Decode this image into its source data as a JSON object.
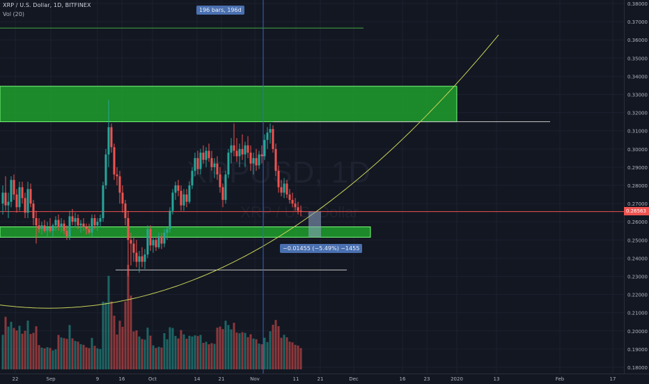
{
  "header": {
    "symbol": "XRP / U.S. Dollar, 1D, BITFINEX",
    "volume_indicator": "Vol (20)"
  },
  "annotations": {
    "bars_range": "196 bars, 196d",
    "measure": "−0.01455 (−5.49%) −1455",
    "watermark_symbol": "XRPUSD, 1D",
    "watermark_name": "XRP / U.S. Dollar"
  },
  "last_price": "0.26563",
  "colors": {
    "background": "#131722",
    "up": "#26a69a",
    "down": "#ef5350",
    "zone": "#1f9e2b",
    "zone_border": "#7cff7c",
    "curve": "#c8d45a",
    "price_line": "#ef5350",
    "badge": "#4a70b0"
  },
  "chart_data": {
    "type": "candlestick",
    "y_ticks": [
      "0.38000",
      "0.37000",
      "0.36000",
      "0.35000",
      "0.34000",
      "0.33000",
      "0.32000",
      "0.31000",
      "0.30000",
      "0.29000",
      "0.28000",
      "0.27000",
      "0.26000",
      "0.25000",
      "0.24000",
      "0.23000",
      "0.22000",
      "0.21000",
      "0.20000",
      "0.19000",
      "0.18000"
    ],
    "x_ticks": [
      {
        "label": "22",
        "x": 22
      },
      {
        "label": "Sep",
        "x": 73
      },
      {
        "label": "9",
        "x": 140
      },
      {
        "label": "16",
        "x": 175
      },
      {
        "label": "Oct",
        "x": 219
      },
      {
        "label": "14",
        "x": 283
      },
      {
        "label": "21",
        "x": 318
      },
      {
        "label": "Nov",
        "x": 366
      },
      {
        "label": "11",
        "x": 425
      },
      {
        "label": "21",
        "x": 460
      },
      {
        "label": "Dec",
        "x": 508
      },
      {
        "label": "16",
        "x": 578
      },
      {
        "label": "23",
        "x": 613
      },
      {
        "label": "2020",
        "x": 656
      },
      {
        "label": "13",
        "x": 713
      },
      {
        "label": "Feb",
        "x": 804
      },
      {
        "label": "17",
        "x": 880
      }
    ],
    "ylim": [
      0.178,
      0.382
    ],
    "candles": [
      {
        "x": 4,
        "o": 0.27,
        "h": 0.28,
        "l": 0.264,
        "c": 0.276
      },
      {
        "x": 8,
        "o": 0.276,
        "h": 0.285,
        "l": 0.266,
        "c": 0.269
      },
      {
        "x": 12,
        "o": 0.269,
        "h": 0.276,
        "l": 0.262,
        "c": 0.271
      },
      {
        "x": 16,
        "o": 0.271,
        "h": 0.285,
        "l": 0.268,
        "c": 0.283
      },
      {
        "x": 20,
        "o": 0.283,
        "h": 0.286,
        "l": 0.272,
        "c": 0.275
      },
      {
        "x": 24,
        "o": 0.275,
        "h": 0.278,
        "l": 0.265,
        "c": 0.268
      },
      {
        "x": 28,
        "o": 0.268,
        "h": 0.282,
        "l": 0.266,
        "c": 0.279
      },
      {
        "x": 32,
        "o": 0.279,
        "h": 0.282,
        "l": 0.27,
        "c": 0.273
      },
      {
        "x": 36,
        "o": 0.273,
        "h": 0.276,
        "l": 0.262,
        "c": 0.265
      },
      {
        "x": 40,
        "o": 0.265,
        "h": 0.282,
        "l": 0.262,
        "c": 0.278
      },
      {
        "x": 44,
        "o": 0.278,
        "h": 0.281,
        "l": 0.268,
        "c": 0.27
      },
      {
        "x": 48,
        "o": 0.27,
        "h": 0.272,
        "l": 0.258,
        "c": 0.262
      },
      {
        "x": 52,
        "o": 0.262,
        "h": 0.266,
        "l": 0.248,
        "c": 0.258
      },
      {
        "x": 56,
        "o": 0.258,
        "h": 0.262,
        "l": 0.254,
        "c": 0.256
      },
      {
        "x": 60,
        "o": 0.256,
        "h": 0.26,
        "l": 0.253,
        "c": 0.258
      },
      {
        "x": 64,
        "o": 0.258,
        "h": 0.261,
        "l": 0.254,
        "c": 0.255
      },
      {
        "x": 68,
        "o": 0.255,
        "h": 0.26,
        "l": 0.252,
        "c": 0.257
      },
      {
        "x": 72,
        "o": 0.257,
        "h": 0.262,
        "l": 0.254,
        "c": 0.255
      },
      {
        "x": 76,
        "o": 0.255,
        "h": 0.259,
        "l": 0.252,
        "c": 0.258
      },
      {
        "x": 80,
        "o": 0.258,
        "h": 0.263,
        "l": 0.255,
        "c": 0.261
      },
      {
        "x": 84,
        "o": 0.261,
        "h": 0.264,
        "l": 0.255,
        "c": 0.257
      },
      {
        "x": 88,
        "o": 0.257,
        "h": 0.262,
        "l": 0.254,
        "c": 0.259
      },
      {
        "x": 92,
        "o": 0.259,
        "h": 0.261,
        "l": 0.253,
        "c": 0.255
      },
      {
        "x": 96,
        "o": 0.255,
        "h": 0.258,
        "l": 0.25,
        "c": 0.252
      },
      {
        "x": 100,
        "o": 0.252,
        "h": 0.266,
        "l": 0.25,
        "c": 0.263
      },
      {
        "x": 104,
        "o": 0.263,
        "h": 0.267,
        "l": 0.258,
        "c": 0.26
      },
      {
        "x": 108,
        "o": 0.26,
        "h": 0.265,
        "l": 0.257,
        "c": 0.262
      },
      {
        "x": 112,
        "o": 0.262,
        "h": 0.264,
        "l": 0.256,
        "c": 0.258
      },
      {
        "x": 116,
        "o": 0.258,
        "h": 0.261,
        "l": 0.254,
        "c": 0.259
      },
      {
        "x": 120,
        "o": 0.259,
        "h": 0.262,
        "l": 0.255,
        "c": 0.257
      },
      {
        "x": 124,
        "o": 0.257,
        "h": 0.259,
        "l": 0.253,
        "c": 0.256
      },
      {
        "x": 128,
        "o": 0.256,
        "h": 0.259,
        "l": 0.253,
        "c": 0.254
      },
      {
        "x": 132,
        "o": 0.254,
        "h": 0.264,
        "l": 0.252,
        "c": 0.262
      },
      {
        "x": 136,
        "o": 0.262,
        "h": 0.264,
        "l": 0.256,
        "c": 0.258
      },
      {
        "x": 140,
        "o": 0.258,
        "h": 0.262,
        "l": 0.255,
        "c": 0.26
      },
      {
        "x": 144,
        "o": 0.26,
        "h": 0.264,
        "l": 0.257,
        "c": 0.262
      },
      {
        "x": 148,
        "o": 0.262,
        "h": 0.282,
        "l": 0.26,
        "c": 0.28
      },
      {
        "x": 152,
        "o": 0.28,
        "h": 0.3,
        "l": 0.278,
        "c": 0.297
      },
      {
        "x": 156,
        "o": 0.297,
        "h": 0.327,
        "l": 0.29,
        "c": 0.312
      },
      {
        "x": 160,
        "o": 0.312,
        "h": 0.314,
        "l": 0.298,
        "c": 0.301
      },
      {
        "x": 164,
        "o": 0.301,
        "h": 0.303,
        "l": 0.283,
        "c": 0.286
      },
      {
        "x": 168,
        "o": 0.286,
        "h": 0.29,
        "l": 0.28,
        "c": 0.285
      },
      {
        "x": 172,
        "o": 0.285,
        "h": 0.288,
        "l": 0.27,
        "c": 0.276
      },
      {
        "x": 176,
        "o": 0.276,
        "h": 0.28,
        "l": 0.265,
        "c": 0.27
      },
      {
        "x": 180,
        "o": 0.27,
        "h": 0.272,
        "l": 0.258,
        "c": 0.262
      },
      {
        "x": 184,
        "o": 0.262,
        "h": 0.266,
        "l": 0.23,
        "c": 0.25
      },
      {
        "x": 188,
        "o": 0.25,
        "h": 0.254,
        "l": 0.236,
        "c": 0.248
      },
      {
        "x": 192,
        "o": 0.248,
        "h": 0.252,
        "l": 0.238,
        "c": 0.243
      },
      {
        "x": 196,
        "o": 0.243,
        "h": 0.25,
        "l": 0.235,
        "c": 0.238
      },
      {
        "x": 200,
        "o": 0.238,
        "h": 0.244,
        "l": 0.232,
        "c": 0.241
      },
      {
        "x": 204,
        "o": 0.241,
        "h": 0.246,
        "l": 0.235,
        "c": 0.238
      },
      {
        "x": 208,
        "o": 0.238,
        "h": 0.245,
        "l": 0.234,
        "c": 0.242
      },
      {
        "x": 212,
        "o": 0.242,
        "h": 0.258,
        "l": 0.24,
        "c": 0.256
      },
      {
        "x": 216,
        "o": 0.256,
        "h": 0.258,
        "l": 0.244,
        "c": 0.247
      },
      {
        "x": 220,
        "o": 0.247,
        "h": 0.252,
        "l": 0.243,
        "c": 0.25
      },
      {
        "x": 224,
        "o": 0.25,
        "h": 0.252,
        "l": 0.244,
        "c": 0.246
      },
      {
        "x": 228,
        "o": 0.246,
        "h": 0.254,
        "l": 0.245,
        "c": 0.252
      },
      {
        "x": 232,
        "o": 0.252,
        "h": 0.254,
        "l": 0.245,
        "c": 0.248
      },
      {
        "x": 236,
        "o": 0.248,
        "h": 0.256,
        "l": 0.246,
        "c": 0.254
      },
      {
        "x": 240,
        "o": 0.254,
        "h": 0.257,
        "l": 0.25,
        "c": 0.256
      },
      {
        "x": 244,
        "o": 0.256,
        "h": 0.268,
        "l": 0.254,
        "c": 0.266
      },
      {
        "x": 248,
        "o": 0.266,
        "h": 0.278,
        "l": 0.264,
        "c": 0.276
      },
      {
        "x": 252,
        "o": 0.276,
        "h": 0.282,
        "l": 0.272,
        "c": 0.28
      },
      {
        "x": 256,
        "o": 0.28,
        "h": 0.283,
        "l": 0.274,
        "c": 0.277
      },
      {
        "x": 260,
        "o": 0.277,
        "h": 0.28,
        "l": 0.266,
        "c": 0.269
      },
      {
        "x": 264,
        "o": 0.269,
        "h": 0.278,
        "l": 0.266,
        "c": 0.275
      },
      {
        "x": 268,
        "o": 0.275,
        "h": 0.278,
        "l": 0.268,
        "c": 0.271
      },
      {
        "x": 272,
        "o": 0.271,
        "h": 0.282,
        "l": 0.27,
        "c": 0.28
      },
      {
        "x": 276,
        "o": 0.28,
        "h": 0.29,
        "l": 0.278,
        "c": 0.288
      },
      {
        "x": 280,
        "o": 0.288,
        "h": 0.298,
        "l": 0.285,
        "c": 0.295
      },
      {
        "x": 284,
        "o": 0.295,
        "h": 0.299,
        "l": 0.286,
        "c": 0.289
      },
      {
        "x": 288,
        "o": 0.289,
        "h": 0.3,
        "l": 0.286,
        "c": 0.298
      },
      {
        "x": 292,
        "o": 0.298,
        "h": 0.302,
        "l": 0.292,
        "c": 0.294
      },
      {
        "x": 296,
        "o": 0.294,
        "h": 0.301,
        "l": 0.29,
        "c": 0.299
      },
      {
        "x": 300,
        "o": 0.299,
        "h": 0.303,
        "l": 0.293,
        "c": 0.295
      },
      {
        "x": 304,
        "o": 0.295,
        "h": 0.299,
        "l": 0.288,
        "c": 0.29
      },
      {
        "x": 308,
        "o": 0.29,
        "h": 0.295,
        "l": 0.284,
        "c": 0.292
      },
      {
        "x": 312,
        "o": 0.292,
        "h": 0.296,
        "l": 0.283,
        "c": 0.286
      },
      {
        "x": 316,
        "o": 0.286,
        "h": 0.29,
        "l": 0.276,
        "c": 0.279
      },
      {
        "x": 320,
        "o": 0.279,
        "h": 0.281,
        "l": 0.268,
        "c": 0.272
      },
      {
        "x": 324,
        "o": 0.272,
        "h": 0.288,
        "l": 0.27,
        "c": 0.286
      },
      {
        "x": 328,
        "o": 0.286,
        "h": 0.3,
        "l": 0.284,
        "c": 0.298
      },
      {
        "x": 332,
        "o": 0.298,
        "h": 0.306,
        "l": 0.292,
        "c": 0.302
      },
      {
        "x": 336,
        "o": 0.302,
        "h": 0.314,
        "l": 0.296,
        "c": 0.299
      },
      {
        "x": 340,
        "o": 0.299,
        "h": 0.306,
        "l": 0.293,
        "c": 0.296
      },
      {
        "x": 344,
        "o": 0.296,
        "h": 0.303,
        "l": 0.29,
        "c": 0.3
      },
      {
        "x": 348,
        "o": 0.3,
        "h": 0.308,
        "l": 0.294,
        "c": 0.297
      },
      {
        "x": 352,
        "o": 0.297,
        "h": 0.304,
        "l": 0.29,
        "c": 0.302
      },
      {
        "x": 356,
        "o": 0.302,
        "h": 0.307,
        "l": 0.295,
        "c": 0.298
      },
      {
        "x": 360,
        "o": 0.298,
        "h": 0.302,
        "l": 0.288,
        "c": 0.292
      },
      {
        "x": 364,
        "o": 0.292,
        "h": 0.298,
        "l": 0.286,
        "c": 0.295
      },
      {
        "x": 368,
        "o": 0.295,
        "h": 0.3,
        "l": 0.288,
        "c": 0.291
      },
      {
        "x": 372,
        "o": 0.291,
        "h": 0.299,
        "l": 0.289,
        "c": 0.297
      },
      {
        "x": 376,
        "o": 0.297,
        "h": 0.302,
        "l": 0.292,
        "c": 0.296
      },
      {
        "x": 380,
        "o": 0.296,
        "h": 0.308,
        "l": 0.294,
        "c": 0.305
      },
      {
        "x": 384,
        "o": 0.305,
        "h": 0.312,
        "l": 0.3,
        "c": 0.309
      },
      {
        "x": 388,
        "o": 0.309,
        "h": 0.314,
        "l": 0.303,
        "c": 0.311
      },
      {
        "x": 392,
        "o": 0.311,
        "h": 0.313,
        "l": 0.298,
        "c": 0.3
      },
      {
        "x": 396,
        "o": 0.3,
        "h": 0.303,
        "l": 0.285,
        "c": 0.288
      },
      {
        "x": 400,
        "o": 0.288,
        "h": 0.291,
        "l": 0.276,
        "c": 0.279
      },
      {
        "x": 404,
        "o": 0.279,
        "h": 0.283,
        "l": 0.274,
        "c": 0.276
      },
      {
        "x": 408,
        "o": 0.276,
        "h": 0.284,
        "l": 0.273,
        "c": 0.281
      },
      {
        "x": 412,
        "o": 0.281,
        "h": 0.283,
        "l": 0.273,
        "c": 0.275
      },
      {
        "x": 416,
        "o": 0.275,
        "h": 0.278,
        "l": 0.27,
        "c": 0.272
      },
      {
        "x": 420,
        "o": 0.272,
        "h": 0.276,
        "l": 0.268,
        "c": 0.27
      },
      {
        "x": 424,
        "o": 0.27,
        "h": 0.273,
        "l": 0.266,
        "c": 0.268
      },
      {
        "x": 428,
        "o": 0.268,
        "h": 0.271,
        "l": 0.264,
        "c": 0.266
      },
      {
        "x": 432,
        "o": 0.266,
        "h": 0.269,
        "l": 0.263,
        "c": 0.2656
      }
    ],
    "zones": [
      {
        "y_top": 0.3345,
        "y_bottom": 0.315,
        "x_start": 0,
        "x_end": 656
      },
      {
        "y_top": 0.2572,
        "y_bottom": 0.2515,
        "x_start": 0,
        "x_end": 532
      }
    ],
    "lines": [
      {
        "y": 0.3665,
        "x_start": 0,
        "x_end": 522,
        "color": "#3fa83f"
      },
      {
        "y": 0.315,
        "x_start": 392,
        "x_end": 790,
        "color": "#c8c8c8"
      },
      {
        "y": 0.2335,
        "x_start": 166,
        "x_end": 498,
        "color": "#c8c8c8"
      },
      {
        "y": 0.2656,
        "x_start": 0,
        "x_end": 896,
        "color": "#ef5350"
      }
    ],
    "crosshair_x": 378,
    "measure_box": {
      "x_start": 443,
      "x_end": 461,
      "y_top": 0.2656,
      "y_bottom": 0.2515
    },
    "curve": {
      "x_vertex": 70,
      "y_vertex": 0.2125,
      "a": 3.6e-07,
      "x_min": 0,
      "x_max": 716
    }
  }
}
